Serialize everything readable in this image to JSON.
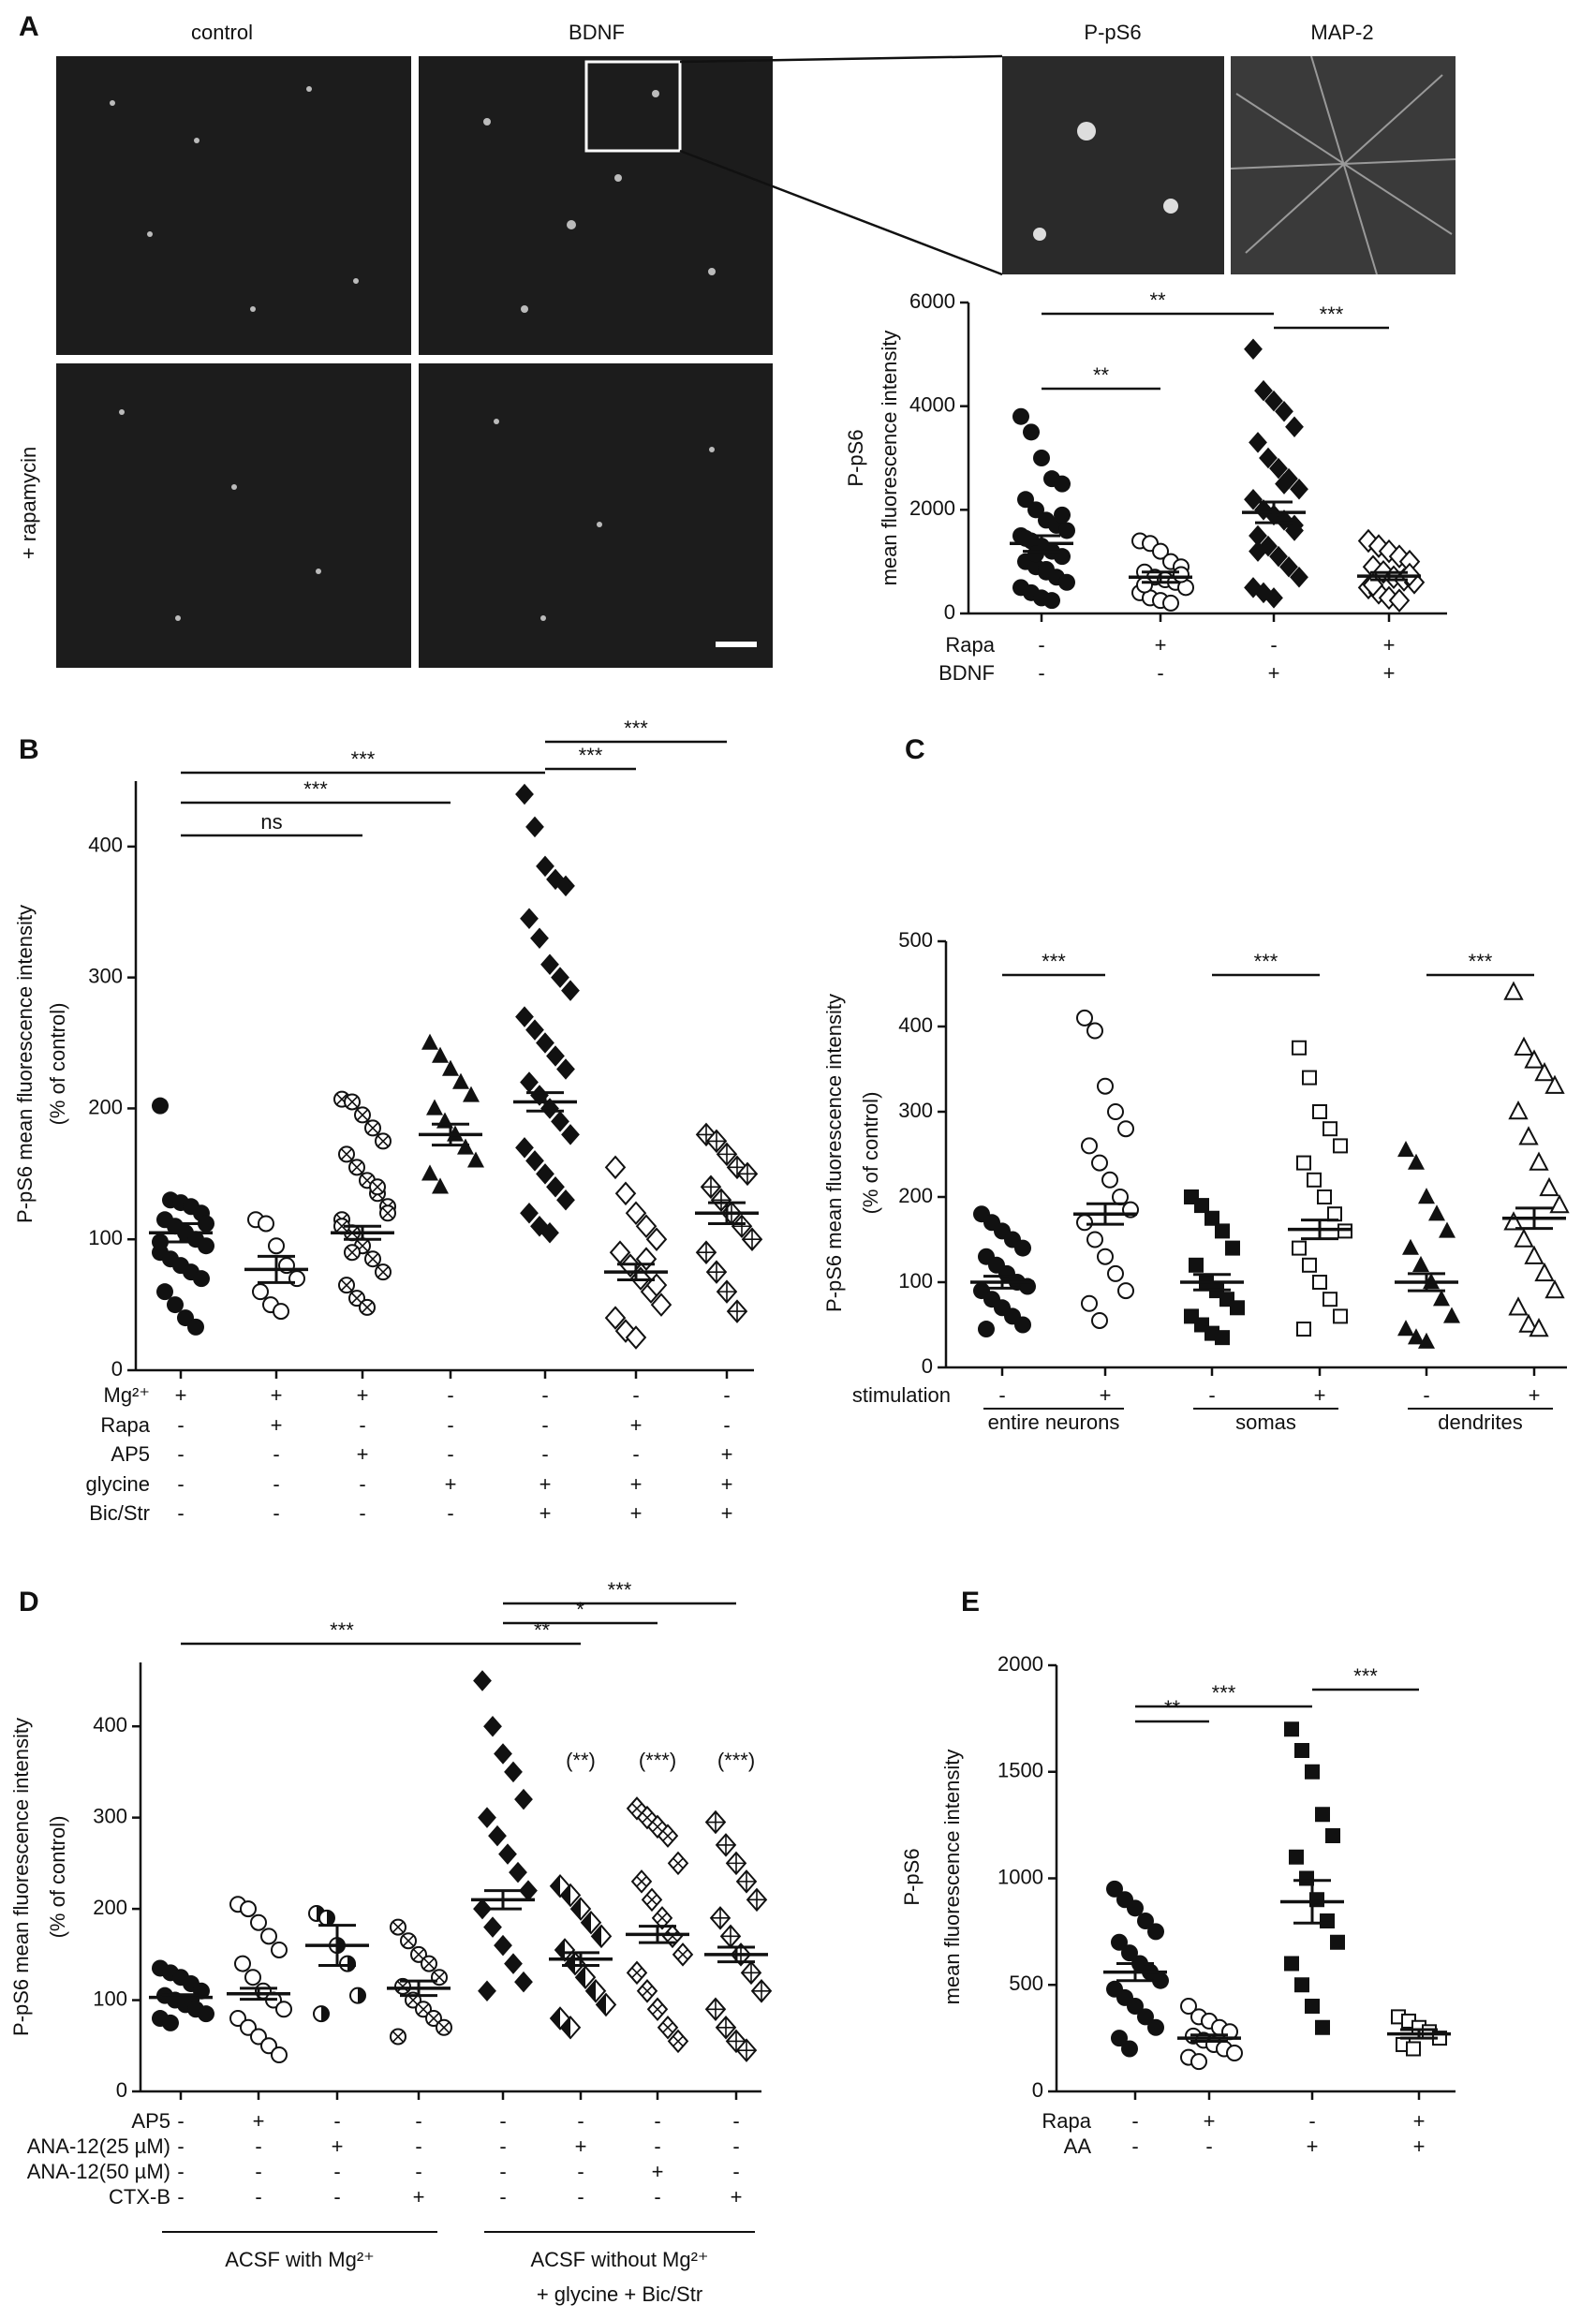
{
  "figure": {
    "image_labels": [
      "control",
      "BDNF",
      "P-pS6",
      "MAP-2"
    ],
    "image_row_label": "+ rapamycin"
  },
  "chart_data": [
    {
      "type": "dotplot",
      "panel": "A",
      "y_label": [
        "P-pS6",
        "mean fluorescence intensity"
      ],
      "ylim": [
        0,
        6000
      ],
      "yticks": [
        0,
        2000,
        4000,
        6000
      ],
      "groups": [
        {
          "marker": "circle",
          "mean": 1350,
          "sem": 150,
          "values": [
            3800,
            3500,
            3000,
            2600,
            2500,
            2200,
            2000,
            1800,
            1700,
            1600,
            1500,
            1400,
            1300,
            1200,
            1100,
            1000,
            900,
            800,
            700,
            600,
            500,
            400,
            300,
            250,
            1900,
            1450,
            1150,
            850
          ]
        },
        {
          "marker": "open-circle",
          "mean": 700,
          "sem": 100,
          "values": [
            1400,
            1350,
            1200,
            1000,
            900,
            800,
            700,
            650,
            600,
            500,
            400,
            300,
            250,
            200,
            750,
            550
          ]
        },
        {
          "marker": "diamond",
          "mean": 1950,
          "sem": 200,
          "values": [
            5100,
            4300,
            4100,
            3900,
            3600,
            3300,
            3000,
            2800,
            2600,
            2400,
            2200,
            2000,
            1900,
            1800,
            1700,
            1500,
            1300,
            1100,
            900,
            700,
            500,
            400,
            300,
            2500,
            1600,
            1200
          ]
        },
        {
          "marker": "open-diamond",
          "mean": 720,
          "sem": 70,
          "values": [
            1400,
            1300,
            1200,
            1100,
            1000,
            900,
            800,
            700,
            650,
            600,
            500,
            400,
            300,
            250,
            750,
            550
          ]
        }
      ],
      "condition_rows": [
        {
          "label": "Rapa",
          "signs": [
            "-",
            "+",
            "-",
            "+"
          ]
        },
        {
          "label": "BDNF",
          "signs": [
            "-",
            "-",
            "+",
            "+"
          ]
        }
      ],
      "significance": [
        {
          "from": 0,
          "to": 1,
          "label": "**"
        },
        {
          "from": 0,
          "to": 2,
          "label": "**"
        },
        {
          "from": 2,
          "to": 3,
          "label": "***"
        }
      ]
    },
    {
      "type": "dotplot",
      "panel": "B",
      "y_label": [
        "P-pS6 mean fluorescence intensity",
        "(% of control)"
      ],
      "ylim": [
        0,
        450
      ],
      "yticks": [
        0,
        100,
        200,
        300,
        400
      ],
      "groups": [
        {
          "marker": "circle",
          "mean": 105,
          "sem": 7,
          "values": [
            202,
            130,
            128,
            125,
            120,
            115,
            110,
            105,
            100,
            95,
            90,
            85,
            80,
            75,
            70,
            60,
            50,
            40,
            33,
            112,
            98
          ]
        },
        {
          "marker": "open-circle",
          "mean": 77,
          "sem": 10,
          "values": [
            115,
            112,
            95,
            80,
            70,
            60,
            50,
            45
          ]
        },
        {
          "marker": "circle-x",
          "mean": 105,
          "sem": 5,
          "values": [
            207,
            205,
            195,
            185,
            175,
            165,
            155,
            145,
            135,
            125,
            115,
            105,
            95,
            85,
            75,
            65,
            55,
            48,
            140,
            120,
            110,
            90
          ]
        },
        {
          "marker": "triangle",
          "mean": 180,
          "sem": 8,
          "values": [
            250,
            240,
            230,
            220,
            210,
            200,
            190,
            180,
            170,
            160,
            150,
            140
          ]
        },
        {
          "marker": "diamond",
          "mean": 205,
          "sem": 7,
          "values": [
            440,
            415,
            385,
            375,
            370,
            345,
            330,
            310,
            300,
            290,
            270,
            260,
            250,
            240,
            230,
            220,
            210,
            200,
            190,
            180,
            170,
            160,
            150,
            140,
            130,
            120,
            110,
            105
          ]
        },
        {
          "marker": "open-diamond",
          "mean": 75,
          "sem": 6,
          "values": [
            155,
            135,
            120,
            110,
            100,
            90,
            80,
            70,
            60,
            50,
            40,
            30,
            25,
            85,
            65
          ]
        },
        {
          "marker": "diamond-plus",
          "mean": 120,
          "sem": 8,
          "values": [
            180,
            175,
            165,
            155,
            150,
            140,
            130,
            120,
            110,
            100,
            90,
            75,
            60,
            45
          ]
        }
      ],
      "condition_rows": [
        {
          "label": "Mg²⁺",
          "signs": [
            "+",
            "+",
            "+",
            "-",
            "-",
            "-",
            "-"
          ]
        },
        {
          "label": "Rapa",
          "signs": [
            "-",
            "+",
            "-",
            "-",
            "-",
            "+",
            "-"
          ]
        },
        {
          "label": "AP5",
          "signs": [
            "-",
            "-",
            "+",
            "-",
            "-",
            "-",
            "+"
          ]
        },
        {
          "label": "glycine",
          "signs": [
            "-",
            "-",
            "-",
            "+",
            "+",
            "+",
            "+"
          ]
        },
        {
          "label": "Bic/Str",
          "signs": [
            "-",
            "-",
            "-",
            "-",
            "+",
            "+",
            "+"
          ]
        }
      ],
      "significance": [
        {
          "from": 0,
          "to": 2,
          "label": "ns"
        },
        {
          "from": 0,
          "to": 3,
          "label": "***"
        },
        {
          "from": 0,
          "to": 4,
          "label": "***"
        },
        {
          "from": 4,
          "to": 5,
          "label": "***"
        },
        {
          "from": 4,
          "to": 6,
          "label": "***"
        }
      ]
    },
    {
      "type": "dotplot",
      "panel": "C",
      "y_label": [
        "P-pS6 mean fluorescence intensity",
        "(% of control)"
      ],
      "ylim": [
        0,
        500
      ],
      "yticks": [
        0,
        100,
        200,
        300,
        400,
        500
      ],
      "groups": [
        {
          "marker": "circle",
          "mean": 100,
          "sem": 7,
          "values": [
            180,
            170,
            160,
            150,
            140,
            130,
            120,
            110,
            100,
            95,
            90,
            80,
            70,
            60,
            50,
            45
          ]
        },
        {
          "marker": "open-circle",
          "mean": 180,
          "sem": 12,
          "values": [
            410,
            395,
            330,
            300,
            280,
            260,
            240,
            220,
            200,
            185,
            170,
            150,
            130,
            110,
            90,
            75,
            55
          ]
        },
        {
          "marker": "square",
          "mean": 100,
          "sem": 9,
          "values": [
            200,
            190,
            175,
            160,
            140,
            120,
            100,
            90,
            80,
            70,
            60,
            50,
            40,
            35
          ]
        },
        {
          "marker": "open-square",
          "mean": 162,
          "sem": 11,
          "values": [
            375,
            340,
            300,
            280,
            260,
            240,
            220,
            200,
            180,
            160,
            140,
            120,
            100,
            80,
            60,
            45
          ]
        },
        {
          "marker": "triangle",
          "mean": 100,
          "sem": 10,
          "values": [
            255,
            240,
            200,
            180,
            160,
            140,
            120,
            100,
            80,
            60,
            45,
            35,
            30
          ]
        },
        {
          "marker": "open-triangle",
          "mean": 175,
          "sem": 12,
          "values": [
            440,
            375,
            360,
            345,
            330,
            300,
            270,
            240,
            210,
            190,
            170,
            150,
            130,
            110,
            90,
            70,
            50,
            45
          ]
        }
      ],
      "condition_rows": [
        {
          "label": "stimulation",
          "signs": [
            "-",
            "+",
            "-",
            "+",
            "-",
            "+"
          ]
        }
      ],
      "group_labels": [
        {
          "label": [
            "entire neurons"
          ],
          "span": [
            0,
            1
          ]
        },
        {
          "label": [
            "somas"
          ],
          "span": [
            2,
            3
          ]
        },
        {
          "label": [
            "dendrites"
          ],
          "span": [
            4,
            5
          ]
        }
      ],
      "significance": [
        {
          "from": 0,
          "to": 1,
          "label": "***"
        },
        {
          "from": 2,
          "to": 3,
          "label": "***"
        },
        {
          "from": 4,
          "to": 5,
          "label": "***"
        }
      ]
    },
    {
      "type": "dotplot",
      "panel": "D",
      "y_label": [
        "P-pS6 mean fluorescence intensity",
        "(% of control)"
      ],
      "ylim": [
        0,
        470
      ],
      "yticks": [
        0,
        100,
        200,
        300,
        400
      ],
      "groups": [
        {
          "marker": "circle",
          "mean": 103,
          "sem": 3,
          "values": [
            135,
            130,
            125,
            118,
            110,
            105,
            100,
            95,
            90,
            85,
            80,
            75
          ]
        },
        {
          "marker": "open-circle",
          "mean": 107,
          "sem": 6,
          "values": [
            205,
            200,
            185,
            170,
            155,
            140,
            125,
            110,
            100,
            90,
            80,
            70,
            60,
            50,
            40
          ]
        },
        {
          "marker": "half-circle",
          "mean": 160,
          "sem": 22,
          "values": [
            195,
            190,
            160,
            140,
            105,
            85
          ]
        },
        {
          "marker": "circle-x",
          "mean": 113,
          "sem": 8,
          "values": [
            180,
            165,
            150,
            140,
            125,
            115,
            100,
            90,
            80,
            70,
            60
          ]
        },
        {
          "marker": "diamond",
          "mean": 210,
          "sem": 10,
          "values": [
            450,
            400,
            370,
            350,
            320,
            300,
            280,
            260,
            240,
            220,
            200,
            180,
            160,
            140,
            120,
            110
          ]
        },
        {
          "marker": "half-diamond",
          "mean": 145,
          "sem": 7,
          "values": [
            225,
            215,
            200,
            185,
            170,
            155,
            140,
            125,
            110,
            95,
            80,
            70
          ]
        },
        {
          "marker": "diamond-x",
          "mean": 172,
          "sem": 9,
          "values": [
            310,
            300,
            290,
            280,
            250,
            230,
            210,
            190,
            170,
            150,
            130,
            110,
            90,
            70,
            55
          ]
        },
        {
          "marker": "diamond-plus",
          "mean": 150,
          "sem": 8,
          "values": [
            295,
            270,
            250,
            230,
            210,
            190,
            170,
            150,
            130,
            110,
            90,
            70,
            55,
            45
          ]
        }
      ],
      "annotations": [
        {
          "group": 5,
          "label": "(**)"
        },
        {
          "group": 6,
          "label": "(***)"
        },
        {
          "group": 7,
          "label": "(***)"
        }
      ],
      "condition_rows": [
        {
          "label": "AP5",
          "signs": [
            "-",
            "+",
            "-",
            "-",
            "-",
            "-",
            "-",
            "-"
          ]
        },
        {
          "label": "ANA-12(25 µM)",
          "signs": [
            "-",
            "-",
            "+",
            "-",
            "-",
            "+",
            "-",
            "-"
          ]
        },
        {
          "label": "ANA-12(50 µM)",
          "signs": [
            "-",
            "-",
            "-",
            "-",
            "-",
            "-",
            "+",
            "-"
          ]
        },
        {
          "label": "CTX-B",
          "signs": [
            "-",
            "-",
            "-",
            "+",
            "-",
            "-",
            "-",
            "+"
          ]
        }
      ],
      "group_labels": [
        {
          "label": [
            "ACSF with Mg²⁺"
          ],
          "span": [
            0,
            3
          ]
        },
        {
          "label": [
            "ACSF without Mg²⁺",
            "+ glycine + Bic/Str"
          ],
          "span": [
            4,
            7
          ]
        }
      ],
      "significance": [
        {
          "from": 0,
          "to": 4,
          "label": "***"
        },
        {
          "from": 4,
          "to": 5,
          "label": "**"
        },
        {
          "from": 4,
          "to": 6,
          "label": "*"
        },
        {
          "from": 4,
          "to": 7,
          "label": "***"
        }
      ]
    },
    {
      "type": "dotplot",
      "panel": "E",
      "y_label": [
        "P-pS6",
        "mean fluorescence intensity"
      ],
      "ylim": [
        0,
        2000
      ],
      "yticks": [
        0,
        500,
        1000,
        1500,
        2000
      ],
      "groups": [
        {
          "marker": "circle",
          "mean": 560,
          "sem": 40,
          "values": [
            950,
            900,
            860,
            800,
            750,
            700,
            650,
            600,
            560,
            520,
            480,
            440,
            400,
            350,
            300,
            250,
            200
          ]
        },
        {
          "marker": "open-circle",
          "mean": 250,
          "sem": 15,
          "values": [
            400,
            350,
            330,
            300,
            280,
            260,
            240,
            220,
            200,
            180,
            160,
            140
          ]
        },
        {
          "marker": "square",
          "mean": 890,
          "sem": 100,
          "values": [
            1700,
            1600,
            1500,
            1300,
            1200,
            1100,
            1000,
            900,
            800,
            700,
            600,
            500,
            400,
            300
          ]
        },
        {
          "marker": "open-square",
          "mean": 270,
          "sem": 20,
          "values": [
            350,
            330,
            300,
            280,
            250,
            220,
            200
          ]
        }
      ],
      "condition_rows": [
        {
          "label": "Rapa",
          "signs": [
            "-",
            "+",
            "-",
            "+"
          ]
        },
        {
          "label": "AA",
          "signs": [
            "-",
            "-",
            "+",
            "+"
          ]
        }
      ],
      "significance": [
        {
          "from": 0,
          "to": 1,
          "label": "**"
        },
        {
          "from": 0,
          "to": 2,
          "label": "***"
        },
        {
          "from": 2,
          "to": 3,
          "label": "***"
        }
      ]
    }
  ]
}
